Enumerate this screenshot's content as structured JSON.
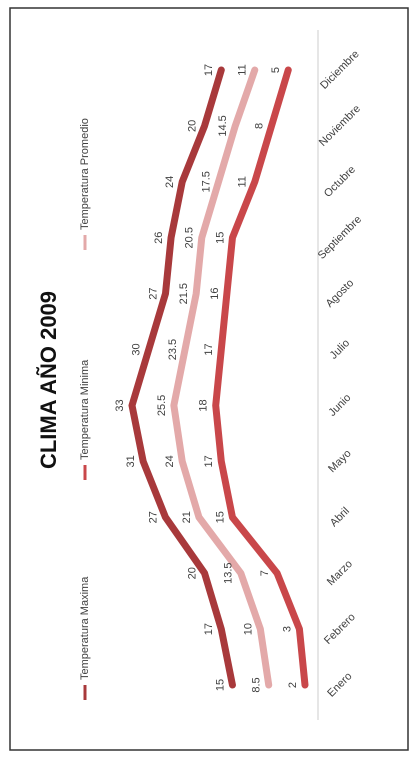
{
  "chart_data": {
    "type": "line",
    "title": "CLIMA AÑO 2009",
    "categories": [
      "Enero",
      "Febrero",
      "Marzo",
      "Abril",
      "Mayo",
      "Junio",
      "Julio",
      "Agosto",
      "Septiembre",
      "Octubre",
      "Noviembre",
      "Diciembre"
    ],
    "series": [
      {
        "name": "Temperatura Maxima",
        "color": "#a8393b",
        "values": [
          15,
          17,
          20,
          27,
          31,
          33,
          30,
          27,
          26,
          24,
          20,
          17
        ]
      },
      {
        "name": "Temperatura Minima",
        "color": "#c9474a",
        "values": [
          2,
          3,
          7,
          15,
          17,
          18,
          17,
          16,
          15,
          11,
          8,
          5
        ]
      },
      {
        "name": "Temperatura Promedio",
        "color": "#e3a9a9",
        "values": [
          8.5,
          10,
          13.5,
          21,
          24,
          25.5,
          23.5,
          21.5,
          20.5,
          17.5,
          14.5,
          11
        ]
      }
    ]
  }
}
